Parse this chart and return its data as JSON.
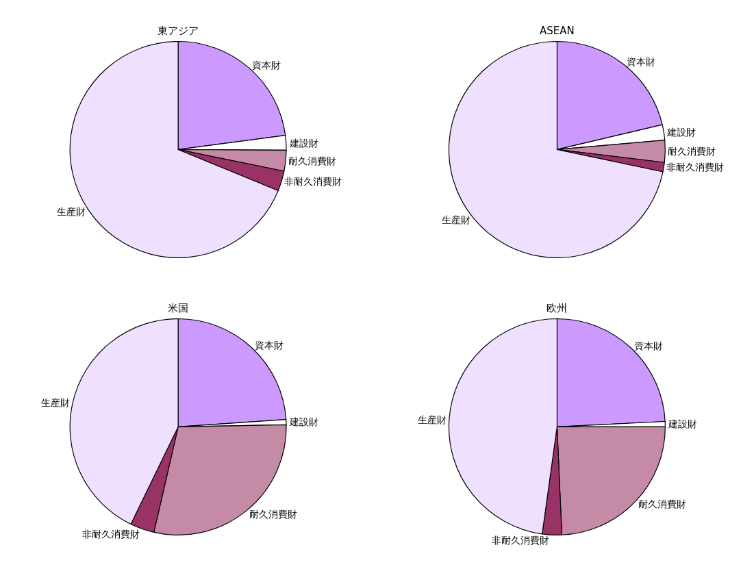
{
  "chart_data": [
    {
      "type": "pie",
      "title": "東アジア",
      "categories": [
        "資本財",
        "建設財",
        "耐久消費財",
        "非耐久消費財",
        "生産財"
      ],
      "values": [
        22.9,
        2.2,
        3.1,
        3.0,
        68.8
      ],
      "colors": [
        "#cc99ff",
        "#ffffff",
        "#c48aa6",
        "#993366",
        "#f0e0ff"
      ],
      "legend": false
    },
    {
      "type": "pie",
      "title": "ASEAN",
      "categories": [
        "資本財",
        "建設財",
        "耐久消費財",
        "非耐久消費財",
        "生産財"
      ],
      "values": [
        21.3,
        2.3,
        3.3,
        1.4,
        71.7
      ],
      "colors": [
        "#cc99ff",
        "#ffffff",
        "#c48aa6",
        "#993366",
        "#f0e0ff"
      ],
      "legend": false
    },
    {
      "type": "pie",
      "title": "米国",
      "categories": [
        "資本財",
        "建設財",
        "耐久消費財",
        "非耐久消費財",
        "生産財"
      ],
      "values": [
        23.9,
        0.8,
        28.9,
        3.6,
        42.8
      ],
      "colors": [
        "#cc99ff",
        "#ffffff",
        "#c48aa6",
        "#993366",
        "#f0e0ff"
      ],
      "legend": false
    },
    {
      "type": "pie",
      "title": "欧州",
      "categories": [
        "資本財",
        "建設財",
        "耐久消費財",
        "非耐久消費財",
        "生産財"
      ],
      "values": [
        24.2,
        0.8,
        24.3,
        2.9,
        47.8
      ],
      "colors": [
        "#cc99ff",
        "#ffffff",
        "#c48aa6",
        "#993366",
        "#f0e0ff"
      ],
      "legend": false
    }
  ]
}
